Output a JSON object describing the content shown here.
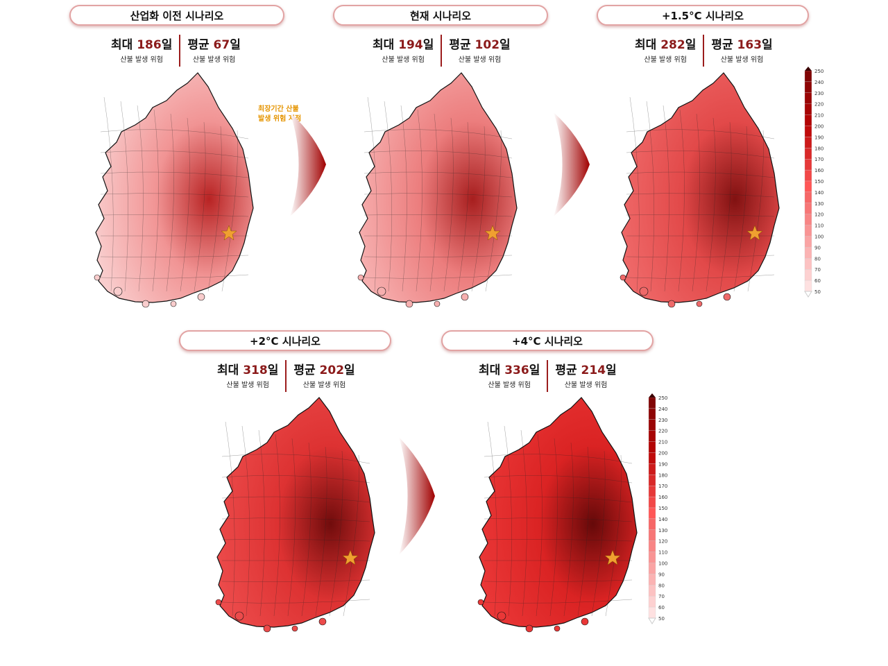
{
  "panels": [
    {
      "title": "산업화 이전 시나리오",
      "max_label": "최대",
      "max_value": "186",
      "avg_label": "평균",
      "avg_value": "67",
      "unit": "일",
      "sub": "산불 발생 위험",
      "intensity": 0.15
    },
    {
      "title": "현재 시나리오",
      "max_label": "최대",
      "max_value": "194",
      "avg_label": "평균",
      "avg_value": "102",
      "unit": "일",
      "sub": "산불 발생 위험",
      "intensity": 0.3
    },
    {
      "title": "+1.5°C 시나리오",
      "max_label": "최대",
      "max_value": "282",
      "avg_label": "평균",
      "avg_value": "163",
      "unit": "일",
      "sub": "산불 발생 위험",
      "intensity": 0.65
    },
    {
      "title": "+2°C 시나리오",
      "max_label": "최대",
      "max_value": "318",
      "avg_label": "평균",
      "avg_value": "202",
      "unit": "일",
      "sub": "산불 발생 위험",
      "intensity": 0.8
    },
    {
      "title": "+4°C 시나리오",
      "max_label": "최대",
      "max_value": "336",
      "avg_label": "평균",
      "avg_value": "214",
      "unit": "일",
      "sub": "산불 발생 위험",
      "intensity": 0.9
    }
  ],
  "annotation": {
    "line1": "최장기간 산불",
    "line2": "발생 위험 지점"
  },
  "colorbar": {
    "ticks": [
      250,
      240,
      230,
      220,
      210,
      200,
      190,
      180,
      170,
      160,
      150,
      140,
      130,
      120,
      110,
      100,
      90,
      80,
      70,
      60,
      50
    ]
  },
  "colors": {
    "accent": "#8b1a1a",
    "star": "#f0a030",
    "pill_border": "#e2a3a3"
  }
}
